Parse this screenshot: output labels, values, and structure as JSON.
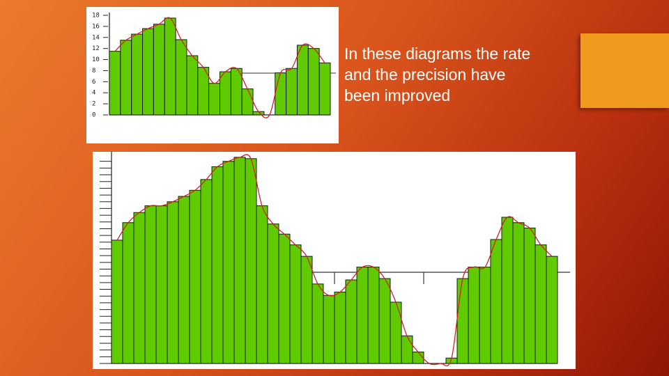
{
  "slide": {
    "text_lines": [
      "In these diagrams the rate",
      "and the precision have",
      "been improved"
    ]
  },
  "chart_data": [
    {
      "type": "bar",
      "color": "#5fcb00",
      "curve_color": "#d42020",
      "categories": [
        null,
        null,
        null,
        null,
        null,
        null,
        null,
        null,
        null,
        null,
        null,
        null,
        null,
        null,
        null,
        null,
        null,
        null,
        null,
        null
      ],
      "values": [
        11.5,
        13.5,
        14.6,
        15.6,
        16.4,
        17.5,
        13.6,
        10.7,
        8.6,
        5.7,
        7.8,
        8.4,
        4.7,
        0.6,
        0,
        7.6,
        8.4,
        12.6,
        12,
        9.4
      ],
      "ylim": [
        0,
        18
      ],
      "yticks": [
        0,
        2,
        4,
        6,
        8,
        10,
        12,
        14,
        16,
        18
      ]
    },
    {
      "type": "bar",
      "color": "#5fcb00",
      "curve_color": "#d42020",
      "values": [
        18.3,
        20.9,
        22.4,
        23.4,
        23.4,
        24,
        24.8,
        25.7,
        27.3,
        29.2,
        30,
        30.6,
        30.4,
        23.4,
        20.7,
        19.2,
        17.6,
        15.9,
        11.8,
        10.1,
        10.6,
        12.4,
        14.3,
        14.3,
        12.6,
        9.1,
        4.1,
        1.7,
        0,
        0,
        0.8,
        12.6,
        14.3,
        14.3,
        18.4,
        21.7,
        20.9,
        20.1,
        17.6,
        15.9
      ],
      "ylim": [
        0,
        31
      ],
      "yticks": [
        0,
        1,
        2,
        3,
        4,
        5,
        6,
        7,
        8,
        9,
        10,
        11,
        12,
        13,
        14,
        15,
        16,
        17,
        18,
        19,
        20,
        21,
        22,
        23,
        24,
        25,
        26,
        27,
        28,
        29,
        30
      ]
    }
  ]
}
